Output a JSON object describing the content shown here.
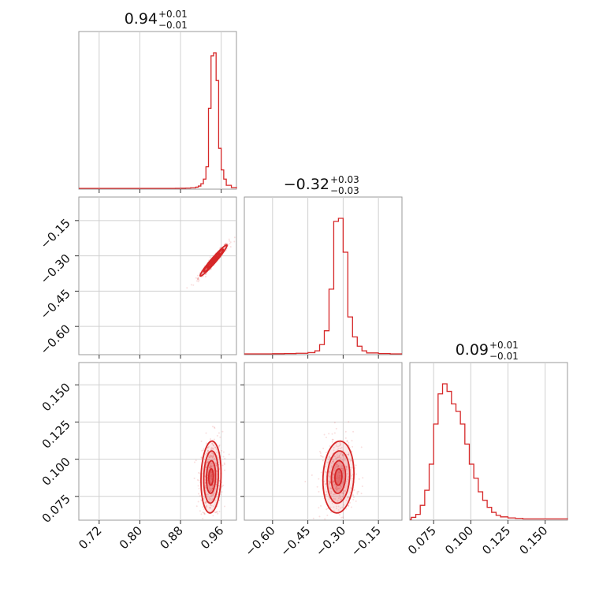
{
  "chart_data": {
    "type": "corner",
    "parameters": [
      {
        "title": {
          "value": "0.94",
          "plus": "+0.01",
          "minus": "−0.01"
        },
        "range": [
          0.68,
          0.99
        ],
        "ticks": [
          0.72,
          0.8,
          0.88,
          0.96
        ],
        "tick_labels": [
          "0.72",
          "0.80",
          "0.88",
          "0.96"
        ]
      },
      {
        "title": {
          "value": "−0.32",
          "plus": "+0.03",
          "minus": "−0.03"
        },
        "range": [
          -0.72,
          -0.05
        ],
        "ticks": [
          -0.6,
          -0.45,
          -0.3,
          -0.15
        ],
        "tick_labels": [
          "−0.60",
          "−0.45",
          "−0.30",
          "−0.15"
        ]
      },
      {
        "title": {
          "value": "0.09",
          "plus": "+0.01",
          "minus": "−0.01"
        },
        "range": [
          0.059,
          0.165
        ],
        "ticks": [
          0.075,
          0.1,
          0.125,
          0.15
        ],
        "tick_labels": [
          "0.075",
          "0.100",
          "0.125",
          "0.150"
        ]
      }
    ],
    "histograms": [
      {
        "param": 0,
        "bins": [
          0.87,
          0.88,
          0.89,
          0.9,
          0.91,
          0.915,
          0.92,
          0.925,
          0.93,
          0.935,
          0.94,
          0.945,
          0.95,
          0.955,
          0.96,
          0.965,
          0.97,
          0.98,
          0.99
        ],
        "counts": [
          0.5,
          1,
          2,
          4,
          8,
          15,
          30,
          60,
          140,
          520,
          860,
          880,
          700,
          260,
          120,
          60,
          20,
          5
        ]
      },
      {
        "param": 1,
        "bins": [
          -0.6,
          -0.55,
          -0.5,
          -0.45,
          -0.42,
          -0.4,
          -0.38,
          -0.36,
          -0.34,
          -0.32,
          -0.3,
          -0.28,
          -0.26,
          -0.24,
          -0.22,
          -0.2,
          -0.15,
          -0.1
        ],
        "counts": [
          1,
          2,
          4,
          8,
          20,
          60,
          150,
          420,
          860,
          880,
          660,
          240,
          110,
          50,
          20,
          6,
          2
        ]
      },
      {
        "param": 2,
        "bins": [
          0.06,
          0.063,
          0.066,
          0.069,
          0.072,
          0.075,
          0.078,
          0.081,
          0.084,
          0.087,
          0.09,
          0.093,
          0.096,
          0.099,
          0.102,
          0.105,
          0.108,
          0.111,
          0.114,
          0.117,
          0.12,
          0.125,
          0.13,
          0.135,
          0.14,
          0.15,
          0.165
        ],
        "counts": [
          4,
          10,
          28,
          58,
          110,
          190,
          250,
          270,
          255,
          230,
          215,
          190,
          150,
          110,
          82,
          55,
          38,
          24,
          14,
          8,
          5,
          3,
          2,
          1,
          1,
          1
        ]
      }
    ],
    "contours_2d": [
      {
        "x_param": 0,
        "y_param": 1,
        "center": [
          0.945,
          -0.32
        ],
        "sigma": [
          0.012,
          0.03
        ],
        "correlation": 0.97
      },
      {
        "x_param": 0,
        "y_param": 2,
        "center": [
          0.94,
          0.088
        ],
        "sigma": [
          0.009,
          0.011
        ],
        "correlation": 0.1
      },
      {
        "x_param": 1,
        "y_param": 2,
        "center": [
          -0.32,
          0.088
        ],
        "sigma": [
          0.03,
          0.011
        ],
        "correlation": 0.1
      }
    ],
    "color": "#d62728",
    "grid": true
  }
}
